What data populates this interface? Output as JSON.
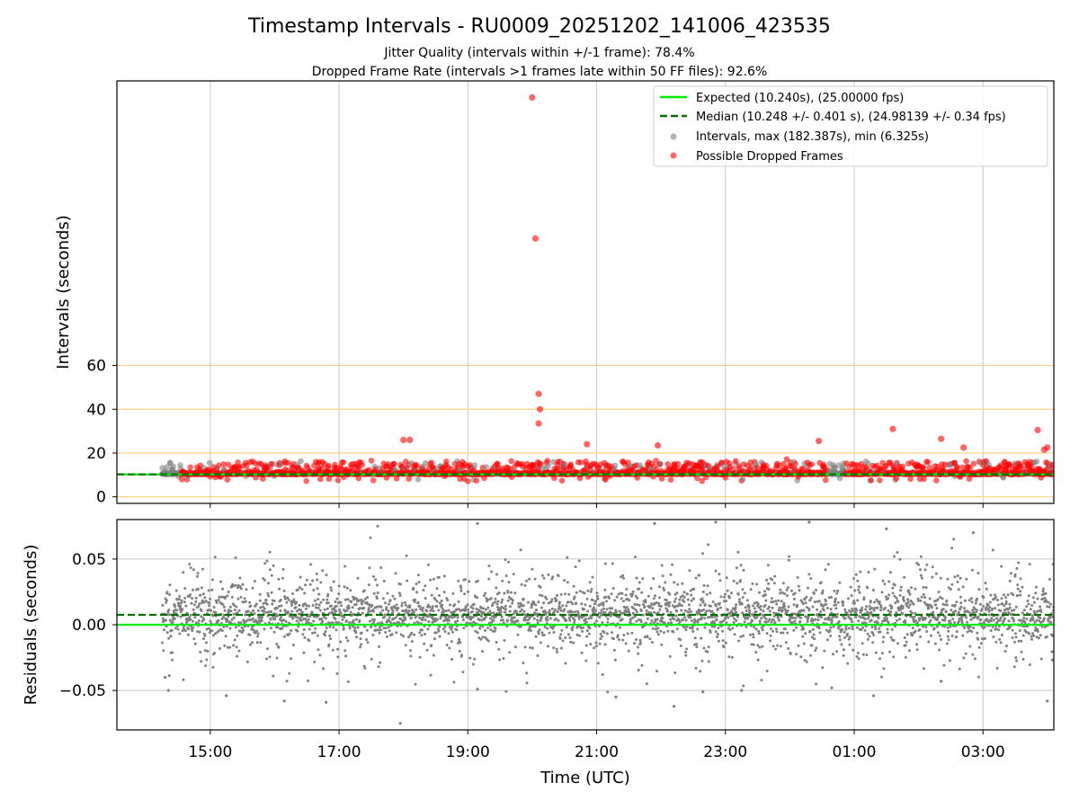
{
  "figure": {
    "title": "Timestamp Intervals - RU0009_20251202_141006_423535",
    "subtitle_1": "Jitter Quality (intervals within +/-1 frame): 78.4%",
    "subtitle_2": "Dropped Frame Rate (intervals >1 frames late within 50 FF files): 92.6%",
    "xlabel": "Time (UTC)"
  },
  "colors": {
    "expected": "#00ee00",
    "median": "#007000",
    "intervals": "#808080",
    "dropped": "#ff0000",
    "guides": "#ffd27f",
    "grid": "#c8c8c8"
  },
  "chart_data": [
    {
      "type": "scatter",
      "name": "intervals",
      "ylabel": "Intervals (seconds)",
      "x_ticks": [
        "15:00",
        "17:00",
        "19:00",
        "21:00",
        "23:00",
        "01:00",
        "03:00"
      ],
      "xlim_hours": [
        13.55,
        28.1
      ],
      "y_ticks": [
        0,
        20,
        40,
        60
      ],
      "ylim": [
        -3,
        190
      ],
      "grid": "vertical lines at x ticks",
      "horizontal_guides": [
        0,
        20,
        40,
        60
      ],
      "legend_placement": "top-right",
      "legend": [
        {
          "label": "Expected (10.240s), (25.00000 fps)",
          "style": "solid-line",
          "color": "#00ee00"
        },
        {
          "label": "Median (10.248 +/- 0.401 s), (24.98139 +/- 0.34 fps)",
          "style": "dashed-line",
          "color": "#007000"
        },
        {
          "label": "Intervals, max (182.387s), min (6.325s)",
          "style": "dot",
          "color": "#808080"
        },
        {
          "label": "Possible Dropped Frames",
          "style": "dot",
          "color": "#ff0000"
        }
      ],
      "expected_value": 10.24,
      "median_value": 10.248,
      "data_start_hour": 14.25,
      "data_end_hour": 28.1,
      "baseline_interval": 10.24,
      "max_interval": 182.387,
      "min_interval": 6.325,
      "notable_points": [
        {
          "x_hour": 20.0,
          "y": 182.4
        },
        {
          "x_hour": 20.05,
          "y": 118.0
        },
        {
          "x_hour": 20.1,
          "y": 47.0
        },
        {
          "x_hour": 20.12,
          "y": 40.0
        },
        {
          "x_hour": 20.1,
          "y": 33.5
        },
        {
          "x_hour": 18.0,
          "y": 26.0
        },
        {
          "x_hour": 18.1,
          "y": 26.0
        },
        {
          "x_hour": 20.85,
          "y": 24.0
        },
        {
          "x_hour": 21.95,
          "y": 23.5
        },
        {
          "x_hour": 24.45,
          "y": 25.5
        },
        {
          "x_hour": 25.6,
          "y": 31.0
        },
        {
          "x_hour": 26.35,
          "y": 26.5
        },
        {
          "x_hour": 26.7,
          "y": 22.5
        },
        {
          "x_hour": 27.85,
          "y": 30.5
        },
        {
          "x_hour": 27.95,
          "y": 21.5
        },
        {
          "x_hour": 28.0,
          "y": 22.5
        }
      ]
    },
    {
      "type": "scatter",
      "name": "residuals",
      "ylabel": "Residuals (seconds)",
      "x_ticks": [
        "15:00",
        "17:00",
        "19:00",
        "21:00",
        "23:00",
        "01:00",
        "03:00"
      ],
      "xlim_hours": [
        13.55,
        28.1
      ],
      "y_ticks": [
        0.05,
        0.0,
        -0.05
      ],
      "y_tick_labels": [
        "0.05",
        "0.00",
        "−0.05"
      ],
      "ylim": [
        -0.08,
        0.08
      ],
      "grid": "both",
      "expected_value": 0.0,
      "median_value": 0.0075,
      "noise_std": 0.017,
      "extreme_points": [
        {
          "x_hour": 14.3,
          "y": -0.04
        },
        {
          "x_hour": 14.35,
          "y": -0.05
        },
        {
          "x_hour": 15.25,
          "y": -0.054
        },
        {
          "x_hour": 16.15,
          "y": -0.058
        },
        {
          "x_hour": 16.8,
          "y": -0.059
        },
        {
          "x_hour": 17.95,
          "y": -0.075
        },
        {
          "x_hour": 19.15,
          "y": -0.049
        },
        {
          "x_hour": 21.3,
          "y": -0.055
        },
        {
          "x_hour": 22.2,
          "y": -0.062
        },
        {
          "x_hour": 22.65,
          "y": -0.051
        },
        {
          "x_hour": 23.25,
          "y": -0.05
        },
        {
          "x_hour": 24.65,
          "y": -0.048
        },
        {
          "x_hour": 25.3,
          "y": -0.054
        },
        {
          "x_hour": 26.35,
          "y": -0.043
        },
        {
          "x_hour": 28.0,
          "y": -0.058
        },
        {
          "x_hour": 17.6,
          "y": 0.075
        },
        {
          "x_hour": 19.15,
          "y": 0.077
        },
        {
          "x_hour": 21.9,
          "y": 0.077
        },
        {
          "x_hour": 22.85,
          "y": 0.078
        },
        {
          "x_hour": 24.3,
          "y": 0.078
        },
        {
          "x_hour": 25.5,
          "y": 0.073
        },
        {
          "x_hour": 26.85,
          "y": 0.07
        }
      ]
    }
  ]
}
